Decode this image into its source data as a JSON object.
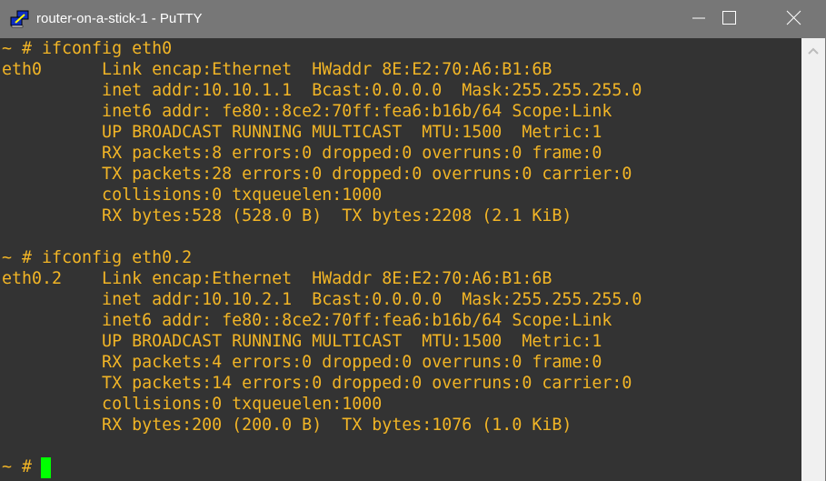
{
  "window": {
    "title": "router-on-a-stick-1 - PuTTY",
    "icon": "putty-icon",
    "controls": [
      "minimize-icon",
      "maximize-icon",
      "close-icon"
    ]
  },
  "colors": {
    "titlebar": "#777777",
    "background": "#333333",
    "text": "#f2b526",
    "cursor": "#00ff00",
    "scrollbar": "#f0f0f0"
  },
  "terminal": {
    "lines": [
      "~ # ifconfig eth0",
      "eth0      Link encap:Ethernet  HWaddr 8E:E2:70:A6:B1:6B",
      "          inet addr:10.10.1.1  Bcast:0.0.0.0  Mask:255.255.255.0",
      "          inet6 addr: fe80::8ce2:70ff:fea6:b16b/64 Scope:Link",
      "          UP BROADCAST RUNNING MULTICAST  MTU:1500  Metric:1",
      "          RX packets:8 errors:0 dropped:0 overruns:0 frame:0",
      "          TX packets:28 errors:0 dropped:0 overruns:0 carrier:0",
      "          collisions:0 txqueuelen:1000",
      "          RX bytes:528 (528.0 B)  TX bytes:2208 (2.1 KiB)",
      "",
      "~ # ifconfig eth0.2",
      "eth0.2    Link encap:Ethernet  HWaddr 8E:E2:70:A6:B1:6B",
      "          inet addr:10.10.2.1  Bcast:0.0.0.0  Mask:255.255.255.0",
      "          inet6 addr: fe80::8ce2:70ff:fea6:b16b/64 Scope:Link",
      "          UP BROADCAST RUNNING MULTICAST  MTU:1500  Metric:1",
      "          RX packets:4 errors:0 dropped:0 overruns:0 frame:0",
      "          TX packets:14 errors:0 dropped:0 overruns:0 carrier:0",
      "          collisions:0 txqueuelen:1000",
      "          RX bytes:200 (200.0 B)  TX bytes:1076 (1.0 KiB)",
      "",
      "~ # "
    ]
  }
}
